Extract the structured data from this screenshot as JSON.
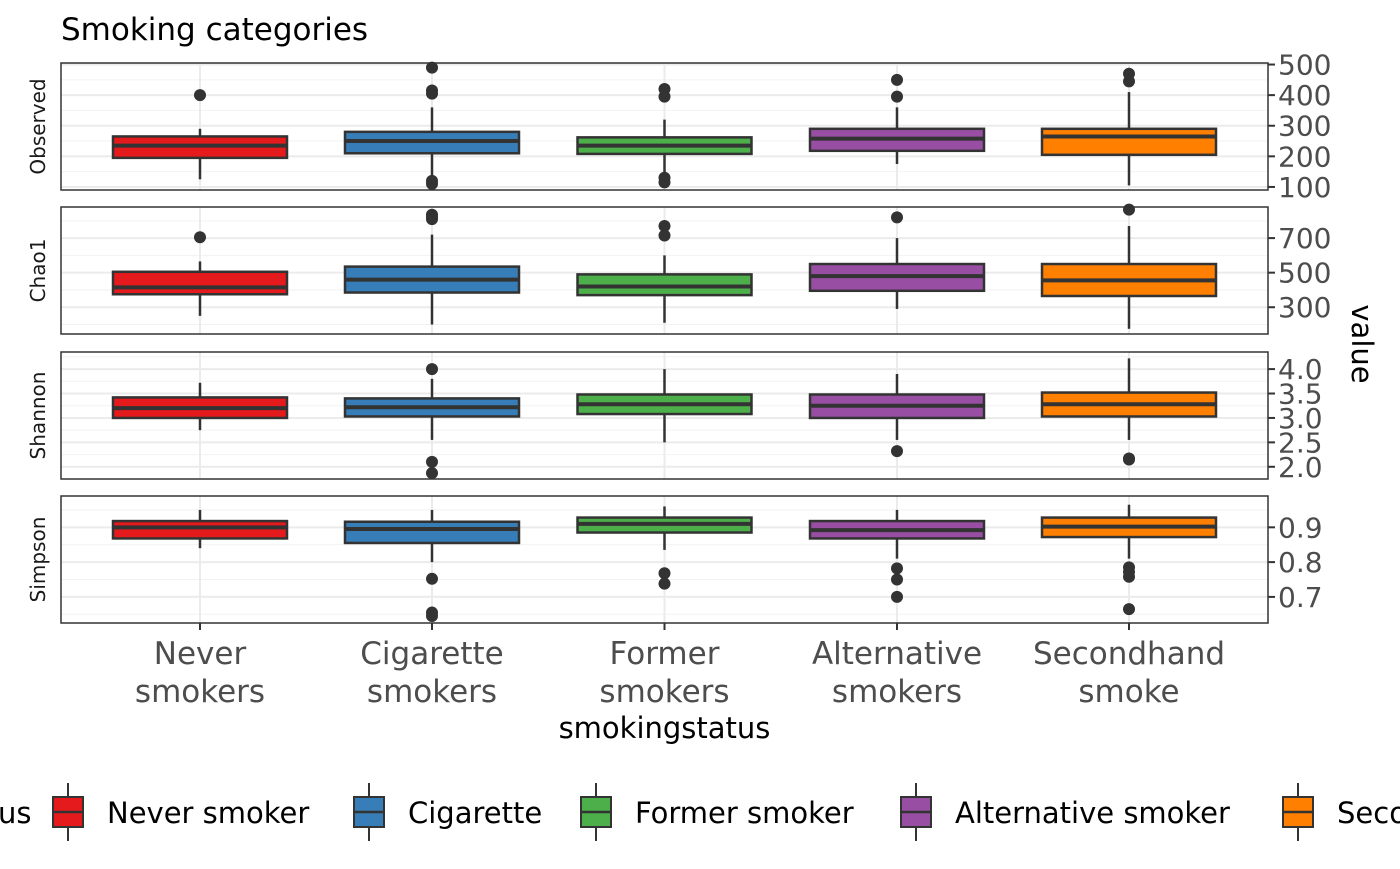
{
  "chart_data": {
    "type": "boxplot",
    "title": "Smoking categories",
    "xlabel": "smokingstatus",
    "ylabel": "value",
    "categories": [
      "Never\nsmokers",
      "Cigarette\nsmokers",
      "Former\nsmokers",
      "Alternative\nsmokers",
      "Secondhand\nsmoke"
    ],
    "colors": [
      "#E41A1C",
      "#377EB8",
      "#4DAF4A",
      "#984EA3",
      "#FF7F00"
    ],
    "legend": {
      "position": "bottom",
      "title_fragment": "us",
      "entries": [
        "Never smoker",
        "Cigarette",
        "Former smoker",
        "Alternative smoker",
        "Seco"
      ]
    },
    "grid": true,
    "panels": [
      {
        "strip": "Observed",
        "ylim": [
          90,
          505
        ],
        "yticks": [
          100,
          200,
          300,
          400,
          500
        ],
        "boxes": [
          {
            "whislo": 125,
            "q1": 195,
            "med": 235,
            "q3": 265,
            "whishi": 290,
            "outliers": [
              400
            ]
          },
          {
            "whislo": 130,
            "q1": 210,
            "med": 250,
            "q3": 280,
            "whishi": 360,
            "outliers": [
              490,
              415,
              405,
              120,
              110
            ]
          },
          {
            "whislo": 140,
            "q1": 208,
            "med": 235,
            "q3": 262,
            "whishi": 320,
            "outliers": [
              420,
              395,
              130,
              115
            ]
          },
          {
            "whislo": 175,
            "q1": 218,
            "med": 258,
            "q3": 290,
            "whishi": 360,
            "outliers": [
              450,
              395
            ]
          },
          {
            "whislo": 105,
            "q1": 205,
            "med": 265,
            "q3": 290,
            "whishi": 410,
            "outliers": [
              470,
              445
            ]
          }
        ]
      },
      {
        "strip": "Chao1",
        "ylim": [
          145,
          880
        ],
        "yticks": [
          300,
          500,
          700
        ],
        "boxes": [
          {
            "whislo": 250,
            "q1": 375,
            "med": 415,
            "q3": 505,
            "whishi": 565,
            "outliers": [
              705
            ]
          },
          {
            "whislo": 200,
            "q1": 385,
            "med": 460,
            "q3": 535,
            "whishi": 720,
            "outliers": [
              835,
              820,
              810
            ]
          },
          {
            "whislo": 210,
            "q1": 370,
            "med": 420,
            "q3": 490,
            "whishi": 600,
            "outliers": [
              770,
              715
            ]
          },
          {
            "whislo": 290,
            "q1": 395,
            "med": 480,
            "q3": 550,
            "whishi": 700,
            "outliers": [
              820
            ]
          },
          {
            "whislo": 175,
            "q1": 365,
            "med": 455,
            "q3": 550,
            "whishi": 770,
            "outliers": [
              865
            ]
          }
        ]
      },
      {
        "strip": "Shannon",
        "ylim": [
          1.75,
          4.35
        ],
        "yticks": [
          2.0,
          2.5,
          3.0,
          3.5,
          4.0
        ],
        "ytick_labels": [
          "2.0",
          "2.5",
          "3.0",
          "3.5",
          "4.0"
        ],
        "boxes": [
          {
            "whislo": 2.75,
            "q1": 3.0,
            "med": 3.2,
            "q3": 3.42,
            "whishi": 3.72,
            "outliers": []
          },
          {
            "whislo": 2.55,
            "q1": 3.03,
            "med": 3.22,
            "q3": 3.4,
            "whishi": 3.8,
            "outliers": [
              4.0,
              2.1,
              1.87
            ]
          },
          {
            "whislo": 2.5,
            "q1": 3.08,
            "med": 3.28,
            "q3": 3.48,
            "whishi": 4.0,
            "outliers": []
          },
          {
            "whislo": 2.55,
            "q1": 3.0,
            "med": 3.25,
            "q3": 3.48,
            "whishi": 3.9,
            "outliers": [
              2.32
            ]
          },
          {
            "whislo": 2.55,
            "q1": 3.03,
            "med": 3.28,
            "q3": 3.52,
            "whishi": 4.22,
            "outliers": [
              2.17,
              2.15
            ]
          }
        ]
      },
      {
        "strip": "Simpson",
        "ylim": [
          0.625,
          0.99
        ],
        "yticks": [
          0.7,
          0.8,
          0.9
        ],
        "ytick_labels": [
          "0.7",
          "0.8",
          "0.9"
        ],
        "boxes": [
          {
            "whislo": 0.84,
            "q1": 0.868,
            "med": 0.9,
            "q3": 0.918,
            "whishi": 0.95,
            "outliers": []
          },
          {
            "whislo": 0.8,
            "q1": 0.855,
            "med": 0.895,
            "q3": 0.916,
            "whishi": 0.95,
            "outliers": [
              0.752,
              0.655,
              0.645
            ]
          },
          {
            "whislo": 0.835,
            "q1": 0.885,
            "med": 0.91,
            "q3": 0.928,
            "whishi": 0.96,
            "outliers": [
              0.768,
              0.738
            ]
          },
          {
            "whislo": 0.81,
            "q1": 0.868,
            "med": 0.892,
            "q3": 0.918,
            "whishi": 0.95,
            "outliers": [
              0.782,
              0.75,
              0.7
            ]
          },
          {
            "whislo": 0.81,
            "q1": 0.872,
            "med": 0.902,
            "q3": 0.928,
            "whishi": 0.965,
            "outliers": [
              0.785,
              0.772,
              0.758,
              0.665
            ]
          }
        ]
      }
    ]
  }
}
